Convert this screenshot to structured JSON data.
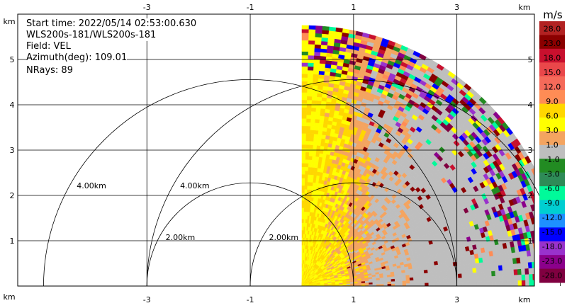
{
  "info": {
    "start_time": "Start time: 2022/05/14 02:53:00.630",
    "instrument": "WLS200s-181/WLS200s-181",
    "field": "Field: VEL",
    "azimuth": "Azimuth(deg): 109.01",
    "nrays": "NRays: 89"
  },
  "axes": {
    "unit": "km",
    "x_ticks": [
      "-3",
      "-1",
      "1",
      "3"
    ],
    "x_tick_values": [
      -3,
      -1,
      1,
      3
    ],
    "y_ticks": [
      "1",
      "2",
      "3",
      "4",
      "5"
    ],
    "y_tick_values": [
      1,
      2,
      3,
      4,
      5
    ],
    "x_range": [
      -5.5,
      4.5
    ],
    "y_range": [
      0,
      6
    ]
  },
  "range_rings": {
    "labels": [
      "2.00km",
      "4.00km"
    ],
    "radii_km": [
      2,
      4
    ],
    "centers_km": [
      [
        -1,
        0
      ],
      [
        1,
        0
      ]
    ]
  },
  "colorbar": {
    "unit": "m/s",
    "labels": [
      "28.0",
      "23.0",
      "18.0",
      "15.0",
      "12.0",
      "9.0",
      "6.0",
      "3.0",
      "1.0",
      "-1.0",
      "-3.0",
      "-6.0",
      "-9.0",
      "-12.0",
      "-15.0",
      "-18.0",
      "-23.0",
      "-28.0"
    ],
    "colors": [
      "#b22222",
      "#8b0000",
      "#c8102e",
      "#e9474a",
      "#f56a5a",
      "#ff8c55",
      "#ffd700",
      "#ffff00",
      "#f4a460",
      "#bebebe",
      "#228b22",
      "#2e8b57",
      "#00fa9a",
      "#00ced1",
      "#1e90ff",
      "#0000ff",
      "#9932cc",
      "#8b008b",
      "#800040"
    ]
  }
}
